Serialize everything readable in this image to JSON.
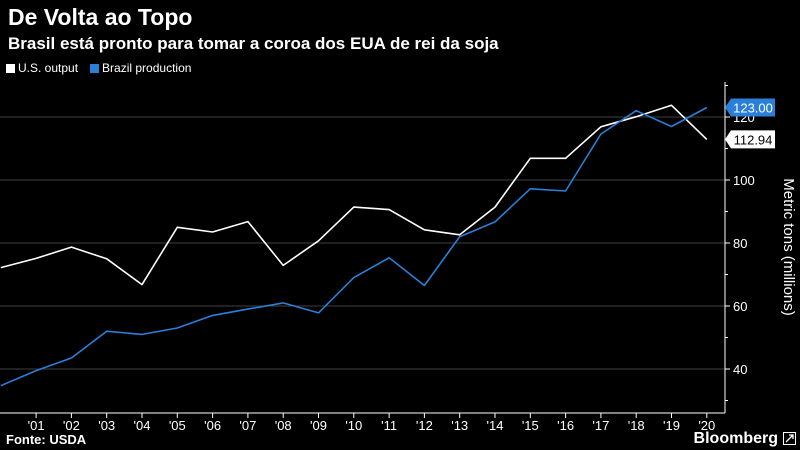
{
  "header": {
    "title": "De Volta ao Topo",
    "subtitle": "Brasil está pronto para tomar a coroa dos EUA de rei da soja"
  },
  "footer": {
    "source": "Fonte: USDA",
    "brand": "Bloomberg",
    "brand_icon": "expand-icon"
  },
  "colors": {
    "background": "#000000",
    "us": "#ffffff",
    "brazil": "#2a7fd8",
    "grid": "#555555",
    "text": "#ffffff"
  },
  "chart_data": {
    "type": "line",
    "title": "De Volta ao Topo",
    "subtitle": "Brasil está pronto para tomar a coroa dos EUA de rei da soja",
    "ylabel": "Metric tons (millions)",
    "xlabel": "",
    "x": [
      2000,
      2001,
      2002,
      2003,
      2004,
      2005,
      2006,
      2007,
      2008,
      2009,
      2010,
      2011,
      2012,
      2013,
      2014,
      2015,
      2016,
      2017,
      2018,
      2019,
      2020
    ],
    "x_tick_labels": [
      "'01",
      "'02",
      "'03",
      "'04",
      "'05",
      "'06",
      "'07",
      "'08",
      "'09",
      "'10",
      "'11",
      "'12",
      "'13",
      "'14",
      "'15",
      "'16",
      "'17",
      "'18",
      "'19",
      "'20"
    ],
    "y_ticks": [
      40,
      60,
      80,
      100,
      120
    ],
    "ylim": [
      28,
      128
    ],
    "grid": true,
    "legend_position": "top-left",
    "series": [
      {
        "name": "U.S. output",
        "values": [
          72.2,
          75.1,
          78.7,
          75.0,
          66.8,
          85.0,
          83.5,
          86.8,
          72.9,
          80.7,
          91.4,
          90.6,
          84.2,
          82.6,
          91.4,
          106.9,
          106.9,
          116.9,
          120.1,
          123.7,
          112.9
        ],
        "end_label": "112.94"
      },
      {
        "name": "Brazil production",
        "values": [
          34.7,
          39.5,
          43.5,
          52.0,
          51.0,
          53.0,
          57.0,
          59.0,
          61.0,
          57.8,
          69.0,
          75.3,
          66.5,
          82.0,
          86.7,
          97.2,
          96.5,
          114.6,
          122.0,
          117.0,
          123.0
        ],
        "end_label": "123.00"
      }
    ]
  }
}
